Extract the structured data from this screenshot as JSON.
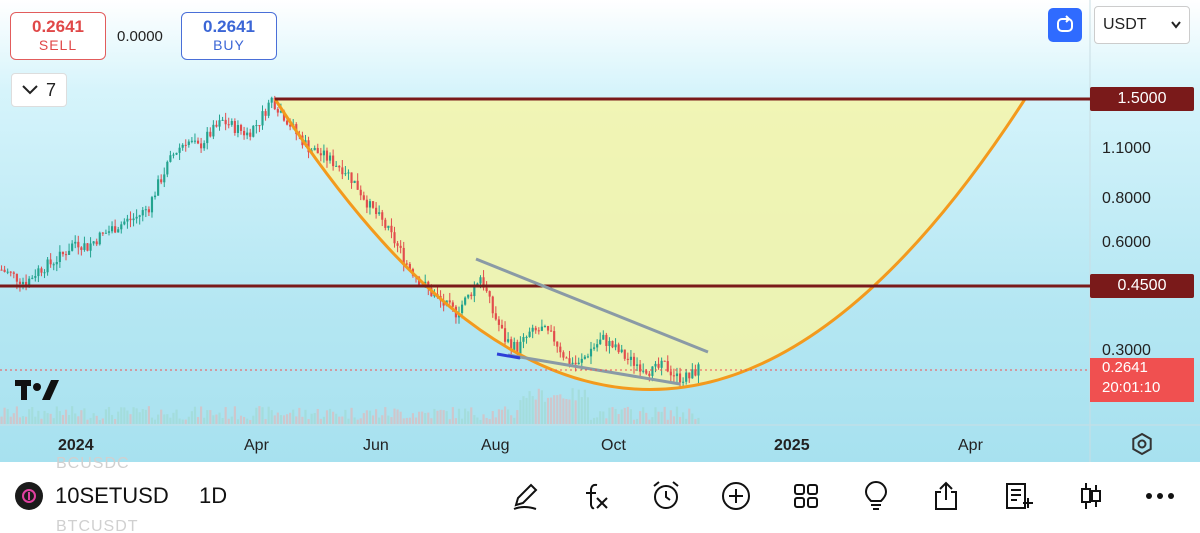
{
  "trade": {
    "sell_price": "0.2641",
    "sell_label": "SELL",
    "spread": "0.0000",
    "buy_price": "0.2641",
    "buy_label": "BUY"
  },
  "indicators": {
    "count": "7"
  },
  "header": {
    "currency": "USDT"
  },
  "chart_data": {
    "type": "candlestick",
    "symbol": "10SETUSD",
    "timeframe": "1D",
    "x_labels": [
      {
        "text": "2024",
        "bold": true
      },
      {
        "text": "Apr",
        "bold": false
      },
      {
        "text": "Jun",
        "bold": false
      },
      {
        "text": "Aug",
        "bold": false
      },
      {
        "text": "Oct",
        "bold": false
      },
      {
        "text": "2025",
        "bold": true
      },
      {
        "text": "Apr",
        "bold": false
      }
    ],
    "y_ticks": [
      "1.1000",
      "0.8000",
      "0.6000",
      "0.3000"
    ],
    "y_scale": "log",
    "price_range": [
      0.19,
      1.9
    ],
    "horizontal_levels": [
      "1.5000",
      "0.4500"
    ],
    "current_price": "0.2641",
    "countdown": "20:01:10",
    "closes_approx": [
      0.5,
      0.48,
      0.46,
      0.5,
      0.52,
      0.55,
      0.6,
      0.58,
      0.62,
      0.65,
      0.68,
      0.7,
      0.75,
      0.9,
      1.05,
      1.15,
      1.1,
      1.2,
      1.3,
      1.25,
      1.2,
      1.3,
      1.5,
      1.35,
      1.2,
      1.1,
      1.05,
      1.0,
      0.95,
      0.85,
      0.75,
      0.68,
      0.6,
      0.52,
      0.47,
      0.43,
      0.4,
      0.38,
      0.42,
      0.48,
      0.38,
      0.32,
      0.3,
      0.33,
      0.34,
      0.32,
      0.28,
      0.27,
      0.3,
      0.32,
      0.3,
      0.28,
      0.27,
      0.26,
      0.27,
      0.25,
      0.25,
      0.27
    ],
    "pattern": "cup",
    "colors": {
      "up": "#22a38e",
      "down": "#e24c4c",
      "cup_fill": "#f6f5a8",
      "cup_stroke": "#f39a1d",
      "level": "#7a1a1a",
      "trendline": "#8a9aa6"
    }
  },
  "bottom": {
    "symbol": "10SETUSD",
    "timeframe": "1D",
    "ghost_top": "BCUSDC",
    "ghost_bottom": "BTCUSDT"
  }
}
